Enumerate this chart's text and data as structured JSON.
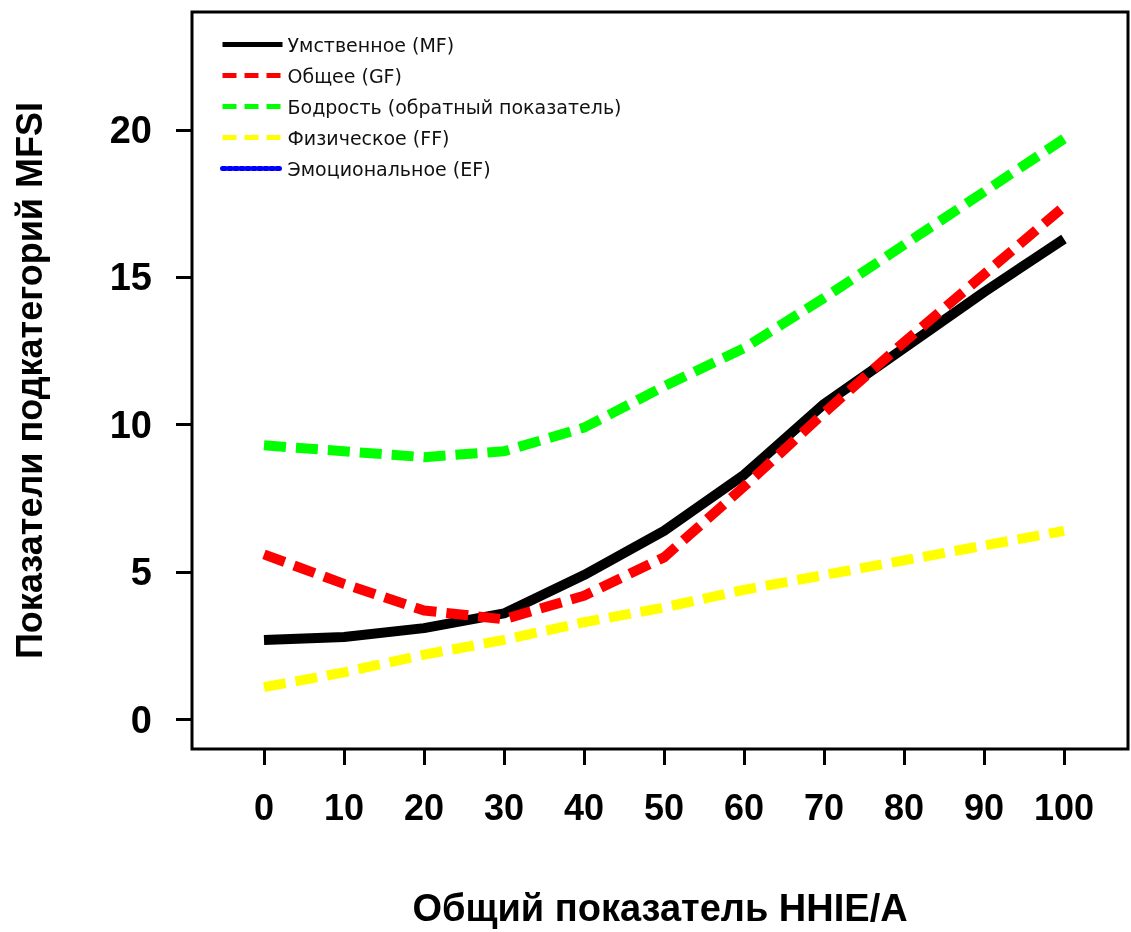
{
  "chart_data": {
    "type": "line",
    "xlabel": "Общий показатель HHIE/A",
    "ylabel": "Показатели подкатегорий MFSI",
    "x": [
      0,
      10,
      20,
      30,
      40,
      50,
      60,
      70,
      80,
      90,
      100
    ],
    "series": [
      {
        "name": "Умственное (MF)",
        "color": "#000000",
        "line_style": "solid",
        "values": [
          2.7,
          2.8,
          3.1,
          3.6,
          4.9,
          6.4,
          8.3,
          10.7,
          12.6,
          14.5,
          16.3
        ]
      },
      {
        "name": "Общее (GF)",
        "color": "#ff0000",
        "line_style": "dashed",
        "values": [
          5.6,
          4.6,
          3.7,
          3.4,
          4.2,
          5.5,
          7.9,
          10.4,
          12.8,
          15.1,
          17.4
        ]
      },
      {
        "name": "Бодрость (обратный показатель)",
        "color": "#00ff00",
        "line_style": "dashed",
        "values": [
          9.3,
          9.1,
          8.9,
          9.1,
          9.9,
          11.3,
          12.6,
          14.3,
          16.1,
          17.9,
          19.7
        ]
      },
      {
        "name": "Физическое (FF)",
        "color": "#ffff00",
        "line_style": "dashed",
        "values": [
          1.1,
          1.6,
          2.2,
          2.7,
          3.3,
          3.8,
          4.4,
          4.9,
          5.4,
          5.9,
          6.4
        ]
      },
      {
        "name": "Эмоциональное (EF)",
        "color": "#0000ff",
        "line_style": "dotted",
        "values": [
          null,
          null,
          null,
          null,
          null,
          null,
          null,
          null,
          null,
          null,
          null
        ]
      }
    ],
    "xlim": [
      -9,
      108
    ],
    "ylim": [
      -1,
      24
    ],
    "xticks": [
      0,
      10,
      20,
      30,
      40,
      50,
      60,
      70,
      80,
      90,
      100
    ],
    "yticks": [
      0,
      5,
      10,
      15,
      20
    ],
    "grid": false,
    "legend": "top left",
    "marker": "none"
  }
}
